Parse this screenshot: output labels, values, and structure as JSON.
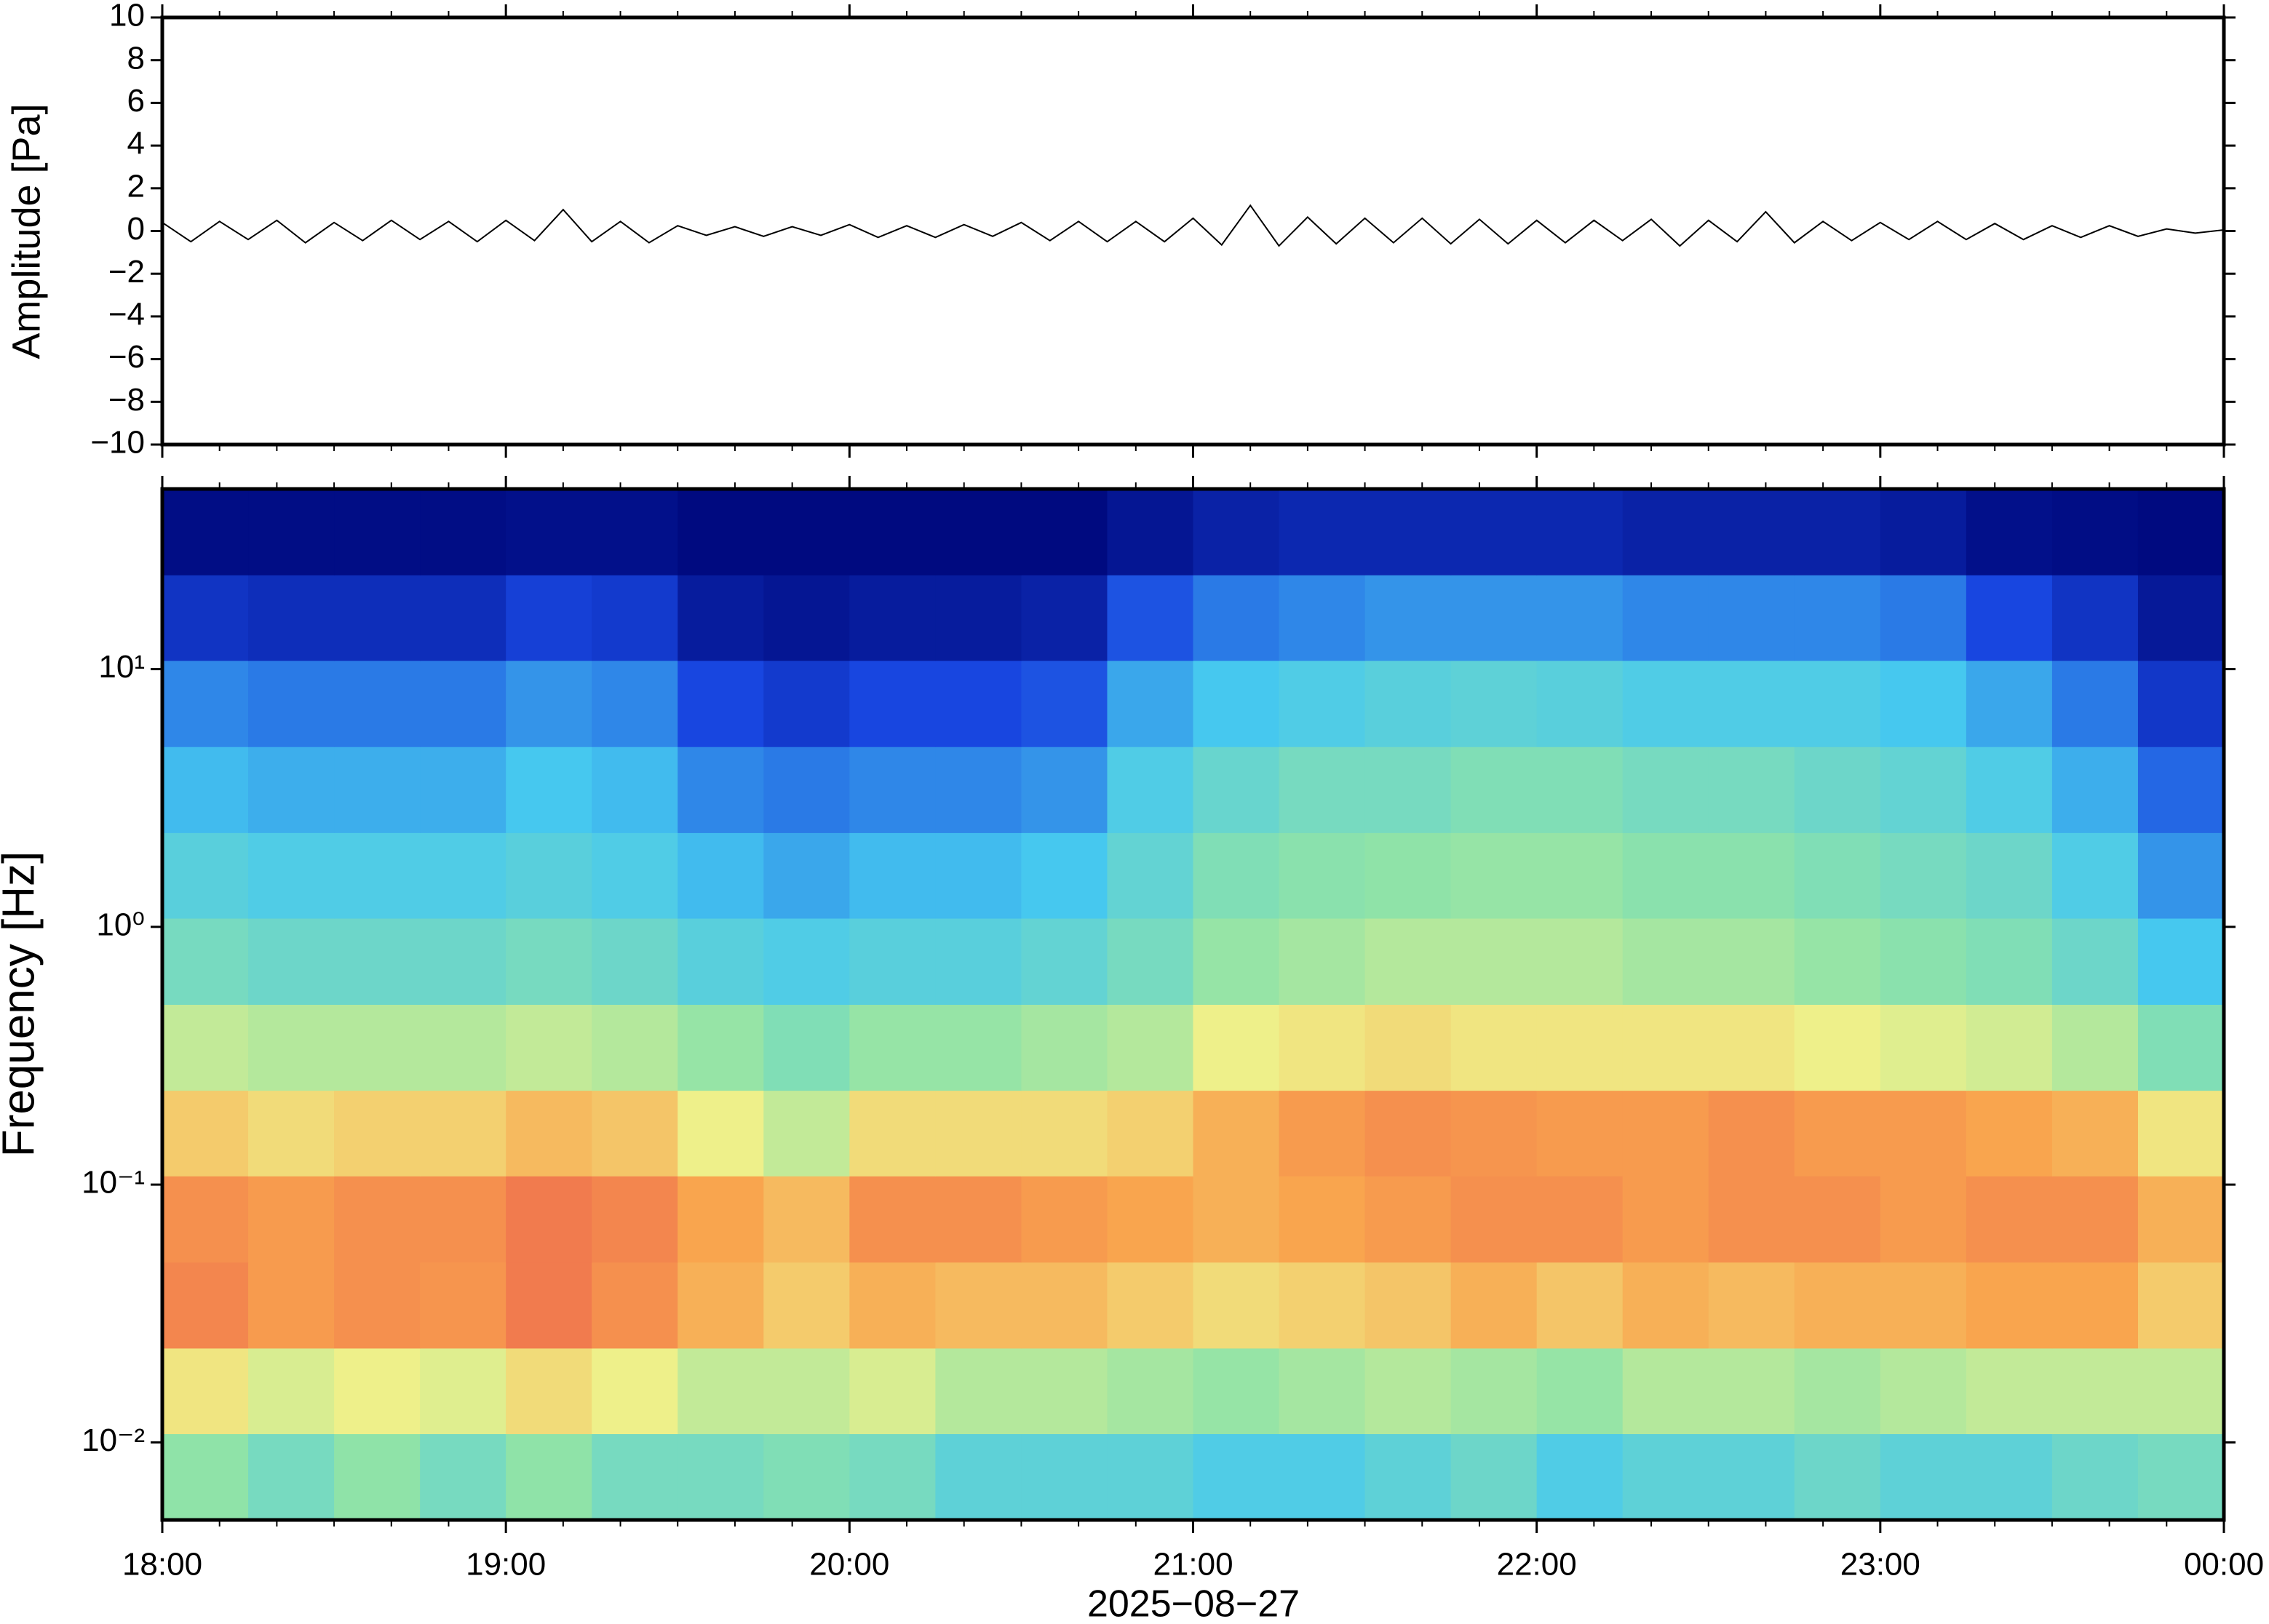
{
  "chart_data": [
    {
      "type": "line",
      "ylabel": "Amplitude [Pa]",
      "xlim": [
        0,
        360
      ],
      "xticks": [
        0,
        60,
        120,
        180,
        240,
        300,
        360
      ],
      "xminorticks": [
        10,
        20,
        30,
        40,
        50,
        70,
        80,
        90,
        100,
        110,
        130,
        140,
        150,
        160,
        170,
        190,
        200,
        210,
        220,
        230,
        250,
        260,
        270,
        280,
        290,
        310,
        320,
        330,
        340,
        350
      ],
      "ylim": [
        -10,
        10
      ],
      "yticks": [
        {
          "value": -10,
          "label": "−10"
        },
        {
          "value": -8,
          "label": "−8"
        },
        {
          "value": -6,
          "label": "−6"
        },
        {
          "value": -4,
          "label": "−4"
        },
        {
          "value": -2,
          "label": "−2"
        },
        0,
        2,
        4,
        6,
        8,
        10
      ],
      "series": [
        {
          "color": "#000000",
          "x": [
            0,
            5,
            10,
            15,
            20,
            25,
            30,
            35,
            40,
            45,
            50,
            55,
            60,
            65,
            70,
            75,
            80,
            85,
            90,
            95,
            100,
            105,
            110,
            115,
            120,
            125,
            130,
            135,
            140,
            145,
            150,
            155,
            160,
            165,
            170,
            175,
            180,
            185,
            190,
            195,
            200,
            205,
            210,
            215,
            220,
            225,
            230,
            235,
            240,
            245,
            250,
            255,
            260,
            265,
            270,
            275,
            280,
            285,
            290,
            295,
            300,
            305,
            310,
            315,
            320,
            325,
            330,
            335,
            340,
            345,
            350,
            355,
            360
          ],
          "values": [
            0.4,
            -0.5,
            0.45,
            -0.4,
            0.5,
            -0.55,
            0.4,
            -0.45,
            0.5,
            -0.4,
            0.45,
            -0.5,
            0.5,
            -0.45,
            1.0,
            -0.5,
            0.45,
            -0.55,
            0.25,
            -0.2,
            0.2,
            -0.25,
            0.2,
            -0.2,
            0.3,
            -0.3,
            0.25,
            -0.3,
            0.3,
            -0.25,
            0.4,
            -0.45,
            0.45,
            -0.5,
            0.45,
            -0.5,
            0.6,
            -0.65,
            1.2,
            -0.7,
            0.65,
            -0.6,
            0.6,
            -0.55,
            0.6,
            -0.6,
            0.55,
            -0.6,
            0.5,
            -0.55,
            0.5,
            -0.45,
            0.55,
            -0.7,
            0.5,
            -0.5,
            0.9,
            -0.55,
            0.45,
            -0.45,
            0.4,
            -0.4,
            0.45,
            -0.4,
            0.35,
            -0.4,
            0.25,
            -0.3,
            0.25,
            -0.25,
            0.1,
            -0.1,
            0.05
          ]
        }
      ]
    },
    {
      "type": "heatmap",
      "ylabel": "Frequency [Hz]",
      "xlabel": "2025−08−27",
      "log_y": true,
      "xlim": [
        0,
        360
      ],
      "xticks": [
        {
          "value": 0,
          "label": "18:00"
        },
        {
          "value": 60,
          "label": "19:00"
        },
        {
          "value": 120,
          "label": "20:00"
        },
        {
          "value": 180,
          "label": "21:00"
        },
        {
          "value": 240,
          "label": "22:00"
        },
        {
          "value": 300,
          "label": "23:00"
        },
        {
          "value": 360,
          "label": "00:00"
        }
      ],
      "xminorticks": [
        10,
        20,
        30,
        40,
        50,
        70,
        80,
        90,
        100,
        110,
        130,
        140,
        150,
        160,
        170,
        190,
        200,
        210,
        220,
        230,
        250,
        260,
        270,
        280,
        290,
        310,
        320,
        330,
        340,
        350
      ],
      "ylim": [
        0.005,
        50
      ],
      "yticks": [
        {
          "value": 0.01,
          "label": "10⁻²"
        },
        {
          "value": 0.1,
          "label": "10⁻¹"
        },
        {
          "value": 1,
          "label": "10⁰"
        },
        {
          "value": 10,
          "label": "10¹"
        }
      ],
      "x_bins": [
        0,
        15,
        30,
        45,
        60,
        75,
        90,
        105,
        120,
        135,
        150,
        165,
        180,
        195,
        210,
        225,
        240,
        255,
        270,
        285,
        300,
        315,
        330,
        345,
        360
      ],
      "y_bins": [
        0.005,
        0.0108,
        0.0232,
        0.05,
        0.108,
        0.232,
        0.5,
        1.08,
        2.32,
        5,
        10.8,
        23.2,
        50
      ],
      "colormap": [
        {
          "value": 0,
          "color": "#000a80"
        },
        {
          "value": 0.2,
          "color": "#1846e0"
        },
        {
          "value": 0.4,
          "color": "#46c8ef"
        },
        {
          "value": 0.55,
          "color": "#8fe3a8"
        },
        {
          "value": 0.68,
          "color": "#eef08a"
        },
        {
          "value": 0.82,
          "color": "#f9a54e"
        },
        {
          "value": 1,
          "color": "#e8474f"
        }
      ],
      "z": [
        [
          0.55,
          0.5,
          0.55,
          0.5,
          0.55,
          0.5,
          0.5,
          0.52,
          0.5,
          0.45,
          0.45,
          0.45,
          0.42,
          0.42,
          0.45,
          0.48,
          0.42,
          0.45,
          0.45,
          0.48,
          0.45,
          0.45,
          0.48,
          0.5
        ],
        [
          0.7,
          0.65,
          0.68,
          0.66,
          0.72,
          0.68,
          0.62,
          0.62,
          0.65,
          0.6,
          0.6,
          0.58,
          0.56,
          0.58,
          0.6,
          0.58,
          0.56,
          0.6,
          0.6,
          0.58,
          0.6,
          0.62,
          0.62,
          0.62
        ],
        [
          0.88,
          0.84,
          0.86,
          0.85,
          0.9,
          0.86,
          0.8,
          0.75,
          0.8,
          0.78,
          0.78,
          0.75,
          0.72,
          0.74,
          0.76,
          0.8,
          0.76,
          0.8,
          0.78,
          0.8,
          0.8,
          0.82,
          0.82,
          0.75
        ],
        [
          0.86,
          0.84,
          0.86,
          0.86,
          0.9,
          0.88,
          0.82,
          0.78,
          0.86,
          0.86,
          0.84,
          0.82,
          0.8,
          0.82,
          0.84,
          0.86,
          0.86,
          0.84,
          0.86,
          0.86,
          0.84,
          0.86,
          0.86,
          0.8
        ],
        [
          0.75,
          0.72,
          0.74,
          0.74,
          0.78,
          0.76,
          0.68,
          0.62,
          0.72,
          0.72,
          0.72,
          0.74,
          0.8,
          0.84,
          0.86,
          0.85,
          0.84,
          0.84,
          0.86,
          0.84,
          0.84,
          0.82,
          0.8,
          0.7
        ],
        [
          0.62,
          0.6,
          0.6,
          0.6,
          0.62,
          0.6,
          0.56,
          0.52,
          0.56,
          0.56,
          0.58,
          0.6,
          0.68,
          0.7,
          0.72,
          0.7,
          0.7,
          0.7,
          0.7,
          0.68,
          0.66,
          0.64,
          0.6,
          0.52
        ],
        [
          0.5,
          0.48,
          0.48,
          0.48,
          0.5,
          0.48,
          0.44,
          0.42,
          0.44,
          0.44,
          0.46,
          0.5,
          0.56,
          0.58,
          0.6,
          0.6,
          0.6,
          0.58,
          0.58,
          0.56,
          0.54,
          0.52,
          0.48,
          0.4
        ],
        [
          0.44,
          0.42,
          0.42,
          0.42,
          0.44,
          0.42,
          0.38,
          0.35,
          0.38,
          0.38,
          0.4,
          0.46,
          0.52,
          0.54,
          0.55,
          0.56,
          0.56,
          0.54,
          0.54,
          0.52,
          0.5,
          0.48,
          0.42,
          0.32
        ],
        [
          0.38,
          0.36,
          0.36,
          0.36,
          0.4,
          0.38,
          0.3,
          0.28,
          0.3,
          0.3,
          0.32,
          0.42,
          0.47,
          0.5,
          0.5,
          0.52,
          0.52,
          0.5,
          0.5,
          0.48,
          0.46,
          0.42,
          0.36,
          0.25
        ],
        [
          0.3,
          0.28,
          0.28,
          0.28,
          0.32,
          0.3,
          0.2,
          0.16,
          0.2,
          0.2,
          0.22,
          0.35,
          0.4,
          0.42,
          0.44,
          0.45,
          0.44,
          0.42,
          0.42,
          0.42,
          0.4,
          0.35,
          0.28,
          0.15
        ],
        [
          0.14,
          0.12,
          0.12,
          0.12,
          0.18,
          0.16,
          0.06,
          0.04,
          0.06,
          0.06,
          0.08,
          0.22,
          0.28,
          0.3,
          0.32,
          0.32,
          0.32,
          0.3,
          0.3,
          0.3,
          0.28,
          0.2,
          0.14,
          0.05
        ],
        [
          0.01,
          0.01,
          0.01,
          0.01,
          0.02,
          0.02,
          0.0,
          0.0,
          0.0,
          0.0,
          0.0,
          0.04,
          0.08,
          0.1,
          0.1,
          0.1,
          0.1,
          0.08,
          0.08,
          0.08,
          0.06,
          0.02,
          0.01,
          0.0
        ]
      ]
    }
  ]
}
